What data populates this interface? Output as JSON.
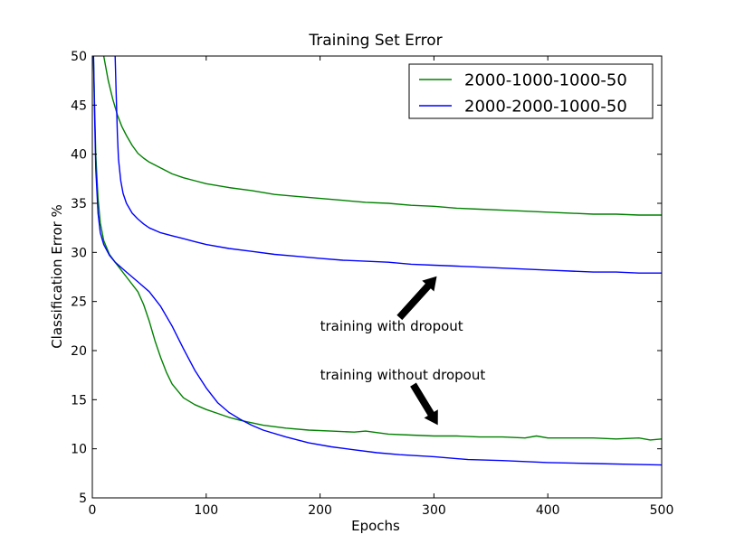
{
  "chart_data": {
    "type": "line",
    "title": "Training Set Error",
    "xlabel": "Epochs",
    "ylabel": "Classification Error %",
    "xlim": [
      0,
      500
    ],
    "ylim": [
      5,
      50
    ],
    "xticks": [
      0,
      100,
      200,
      300,
      400,
      500
    ],
    "yticks": [
      5,
      10,
      15,
      20,
      25,
      30,
      35,
      40,
      45,
      50
    ],
    "grid": false,
    "legend_position": "top-right",
    "series": [
      {
        "name": "2000-1000-1000-50",
        "color": "#008000",
        "group": "with dropout",
        "x": [
          10,
          14,
          18,
          22,
          26,
          30,
          35,
          40,
          45,
          50,
          60,
          70,
          80,
          90,
          100,
          120,
          140,
          160,
          180,
          200,
          220,
          240,
          260,
          280,
          300,
          320,
          340,
          360,
          380,
          400,
          420,
          440,
          460,
          480,
          500
        ],
        "y": [
          50.0,
          47.5,
          45.6,
          44.0,
          42.8,
          41.9,
          40.9,
          40.1,
          39.6,
          39.2,
          38.6,
          38.0,
          37.6,
          37.3,
          37.0,
          36.6,
          36.3,
          35.9,
          35.7,
          35.5,
          35.3,
          35.1,
          35.0,
          34.8,
          34.7,
          34.5,
          34.4,
          34.3,
          34.2,
          34.1,
          34.0,
          33.9,
          33.9,
          33.8,
          33.8
        ]
      },
      {
        "name": "2000-2000-1000-50",
        "color": "#0000ff",
        "group": "with dropout",
        "x": [
          20,
          21,
          22,
          23,
          25,
          27,
          30,
          35,
          40,
          45,
          50,
          60,
          70,
          80,
          90,
          100,
          120,
          140,
          160,
          180,
          200,
          220,
          240,
          260,
          280,
          300,
          320,
          340,
          360,
          380,
          400,
          420,
          440,
          460,
          480,
          500
        ],
        "y": [
          50.0,
          46.0,
          42.0,
          39.5,
          37.3,
          36.0,
          35.0,
          34.0,
          33.4,
          32.9,
          32.5,
          32.0,
          31.7,
          31.4,
          31.1,
          30.8,
          30.4,
          30.1,
          29.8,
          29.6,
          29.4,
          29.2,
          29.1,
          29.0,
          28.8,
          28.7,
          28.6,
          28.5,
          28.4,
          28.3,
          28.2,
          28.1,
          28.0,
          28.0,
          27.9,
          27.9
        ]
      },
      {
        "name": "2000-1000-1000-50",
        "color": "#008000",
        "group": "without dropout",
        "x": [
          1,
          2,
          3,
          5,
          7,
          10,
          15,
          20,
          30,
          40,
          45,
          50,
          55,
          60,
          65,
          70,
          80,
          90,
          100,
          110,
          120,
          130,
          150,
          170,
          190,
          210,
          230,
          240,
          260,
          280,
          300,
          320,
          340,
          360,
          380,
          390,
          400,
          420,
          440,
          460,
          480,
          490,
          500
        ],
        "y": [
          50.0,
          45.0,
          40.0,
          35.5,
          33.0,
          31.2,
          29.8,
          29.0,
          27.5,
          26.0,
          24.7,
          23.0,
          21.0,
          19.3,
          17.8,
          16.6,
          15.2,
          14.5,
          14.0,
          13.6,
          13.2,
          12.9,
          12.4,
          12.1,
          11.9,
          11.8,
          11.7,
          11.8,
          11.5,
          11.4,
          11.3,
          11.3,
          11.2,
          11.2,
          11.1,
          11.3,
          11.1,
          11.1,
          11.1,
          11.0,
          11.1,
          10.9,
          11.0
        ]
      },
      {
        "name": "2000-2000-1000-50",
        "color": "#0000ff",
        "group": "without dropout",
        "x": [
          1,
          2,
          3,
          5,
          7,
          10,
          15,
          20,
          30,
          40,
          50,
          60,
          70,
          80,
          90,
          100,
          110,
          120,
          130,
          140,
          150,
          170,
          190,
          210,
          230,
          250,
          270,
          300,
          330,
          360,
          400,
          440,
          480,
          500
        ],
        "y": [
          50.0,
          44.0,
          38.5,
          34.0,
          32.0,
          30.8,
          29.7,
          29.0,
          28.0,
          27.0,
          26.0,
          24.5,
          22.5,
          20.2,
          18.0,
          16.2,
          14.7,
          13.7,
          13.0,
          12.4,
          11.9,
          11.2,
          10.6,
          10.2,
          9.9,
          9.6,
          9.4,
          9.2,
          8.9,
          8.8,
          8.6,
          8.5,
          8.4,
          8.35
        ]
      }
    ],
    "annotations": [
      {
        "text": "training with dropout",
        "x": 200,
        "y": 22.5,
        "arrow_from": [
          270,
          23.4
        ],
        "arrow_to": [
          302,
          27.5
        ]
      },
      {
        "text": "training without dropout",
        "x": 200,
        "y": 17.5,
        "arrow_from": [
          282,
          16.5
        ],
        "arrow_to": [
          303,
          12.5
        ]
      }
    ]
  }
}
